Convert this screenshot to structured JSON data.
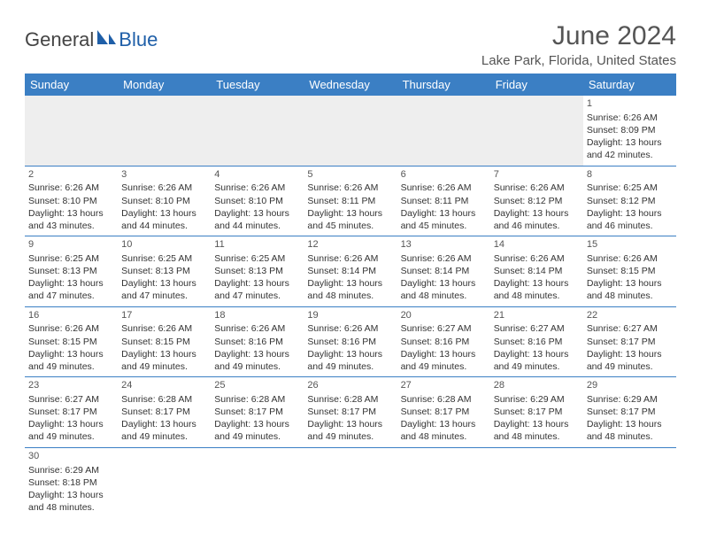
{
  "colors": {
    "header_bg": "#3b7fc4",
    "header_text": "#ffffff",
    "row_border": "#3b7fc4",
    "empty_row_bg": "#eeeeee",
    "title_color": "#555555",
    "logo_gray": "#444444",
    "logo_blue": "#1f5fa8"
  },
  "logo": {
    "text1": "General",
    "text2": "Blue"
  },
  "title": "June 2024",
  "subtitle": "Lake Park, Florida, United States",
  "weekdays": [
    "Sunday",
    "Monday",
    "Tuesday",
    "Wednesday",
    "Thursday",
    "Friday",
    "Saturday"
  ],
  "weeks": [
    [
      null,
      null,
      null,
      null,
      null,
      null,
      {
        "n": "1",
        "sr": "Sunrise: 6:26 AM",
        "ss": "Sunset: 8:09 PM",
        "d1": "Daylight: 13 hours",
        "d2": "and 42 minutes."
      }
    ],
    [
      {
        "n": "2",
        "sr": "Sunrise: 6:26 AM",
        "ss": "Sunset: 8:10 PM",
        "d1": "Daylight: 13 hours",
        "d2": "and 43 minutes."
      },
      {
        "n": "3",
        "sr": "Sunrise: 6:26 AM",
        "ss": "Sunset: 8:10 PM",
        "d1": "Daylight: 13 hours",
        "d2": "and 44 minutes."
      },
      {
        "n": "4",
        "sr": "Sunrise: 6:26 AM",
        "ss": "Sunset: 8:10 PM",
        "d1": "Daylight: 13 hours",
        "d2": "and 44 minutes."
      },
      {
        "n": "5",
        "sr": "Sunrise: 6:26 AM",
        "ss": "Sunset: 8:11 PM",
        "d1": "Daylight: 13 hours",
        "d2": "and 45 minutes."
      },
      {
        "n": "6",
        "sr": "Sunrise: 6:26 AM",
        "ss": "Sunset: 8:11 PM",
        "d1": "Daylight: 13 hours",
        "d2": "and 45 minutes."
      },
      {
        "n": "7",
        "sr": "Sunrise: 6:26 AM",
        "ss": "Sunset: 8:12 PM",
        "d1": "Daylight: 13 hours",
        "d2": "and 46 minutes."
      },
      {
        "n": "8",
        "sr": "Sunrise: 6:25 AM",
        "ss": "Sunset: 8:12 PM",
        "d1": "Daylight: 13 hours",
        "d2": "and 46 minutes."
      }
    ],
    [
      {
        "n": "9",
        "sr": "Sunrise: 6:25 AM",
        "ss": "Sunset: 8:13 PM",
        "d1": "Daylight: 13 hours",
        "d2": "and 47 minutes."
      },
      {
        "n": "10",
        "sr": "Sunrise: 6:25 AM",
        "ss": "Sunset: 8:13 PM",
        "d1": "Daylight: 13 hours",
        "d2": "and 47 minutes."
      },
      {
        "n": "11",
        "sr": "Sunrise: 6:25 AM",
        "ss": "Sunset: 8:13 PM",
        "d1": "Daylight: 13 hours",
        "d2": "and 47 minutes."
      },
      {
        "n": "12",
        "sr": "Sunrise: 6:26 AM",
        "ss": "Sunset: 8:14 PM",
        "d1": "Daylight: 13 hours",
        "d2": "and 48 minutes."
      },
      {
        "n": "13",
        "sr": "Sunrise: 6:26 AM",
        "ss": "Sunset: 8:14 PM",
        "d1": "Daylight: 13 hours",
        "d2": "and 48 minutes."
      },
      {
        "n": "14",
        "sr": "Sunrise: 6:26 AM",
        "ss": "Sunset: 8:14 PM",
        "d1": "Daylight: 13 hours",
        "d2": "and 48 minutes."
      },
      {
        "n": "15",
        "sr": "Sunrise: 6:26 AM",
        "ss": "Sunset: 8:15 PM",
        "d1": "Daylight: 13 hours",
        "d2": "and 48 minutes."
      }
    ],
    [
      {
        "n": "16",
        "sr": "Sunrise: 6:26 AM",
        "ss": "Sunset: 8:15 PM",
        "d1": "Daylight: 13 hours",
        "d2": "and 49 minutes."
      },
      {
        "n": "17",
        "sr": "Sunrise: 6:26 AM",
        "ss": "Sunset: 8:15 PM",
        "d1": "Daylight: 13 hours",
        "d2": "and 49 minutes."
      },
      {
        "n": "18",
        "sr": "Sunrise: 6:26 AM",
        "ss": "Sunset: 8:16 PM",
        "d1": "Daylight: 13 hours",
        "d2": "and 49 minutes."
      },
      {
        "n": "19",
        "sr": "Sunrise: 6:26 AM",
        "ss": "Sunset: 8:16 PM",
        "d1": "Daylight: 13 hours",
        "d2": "and 49 minutes."
      },
      {
        "n": "20",
        "sr": "Sunrise: 6:27 AM",
        "ss": "Sunset: 8:16 PM",
        "d1": "Daylight: 13 hours",
        "d2": "and 49 minutes."
      },
      {
        "n": "21",
        "sr": "Sunrise: 6:27 AM",
        "ss": "Sunset: 8:16 PM",
        "d1": "Daylight: 13 hours",
        "d2": "and 49 minutes."
      },
      {
        "n": "22",
        "sr": "Sunrise: 6:27 AM",
        "ss": "Sunset: 8:17 PM",
        "d1": "Daylight: 13 hours",
        "d2": "and 49 minutes."
      }
    ],
    [
      {
        "n": "23",
        "sr": "Sunrise: 6:27 AM",
        "ss": "Sunset: 8:17 PM",
        "d1": "Daylight: 13 hours",
        "d2": "and 49 minutes."
      },
      {
        "n": "24",
        "sr": "Sunrise: 6:28 AM",
        "ss": "Sunset: 8:17 PM",
        "d1": "Daylight: 13 hours",
        "d2": "and 49 minutes."
      },
      {
        "n": "25",
        "sr": "Sunrise: 6:28 AM",
        "ss": "Sunset: 8:17 PM",
        "d1": "Daylight: 13 hours",
        "d2": "and 49 minutes."
      },
      {
        "n": "26",
        "sr": "Sunrise: 6:28 AM",
        "ss": "Sunset: 8:17 PM",
        "d1": "Daylight: 13 hours",
        "d2": "and 49 minutes."
      },
      {
        "n": "27",
        "sr": "Sunrise: 6:28 AM",
        "ss": "Sunset: 8:17 PM",
        "d1": "Daylight: 13 hours",
        "d2": "and 48 minutes."
      },
      {
        "n": "28",
        "sr": "Sunrise: 6:29 AM",
        "ss": "Sunset: 8:17 PM",
        "d1": "Daylight: 13 hours",
        "d2": "and 48 minutes."
      },
      {
        "n": "29",
        "sr": "Sunrise: 6:29 AM",
        "ss": "Sunset: 8:17 PM",
        "d1": "Daylight: 13 hours",
        "d2": "and 48 minutes."
      }
    ],
    [
      {
        "n": "30",
        "sr": "Sunrise: 6:29 AM",
        "ss": "Sunset: 8:18 PM",
        "d1": "Daylight: 13 hours",
        "d2": "and 48 minutes."
      },
      null,
      null,
      null,
      null,
      null,
      null
    ]
  ]
}
